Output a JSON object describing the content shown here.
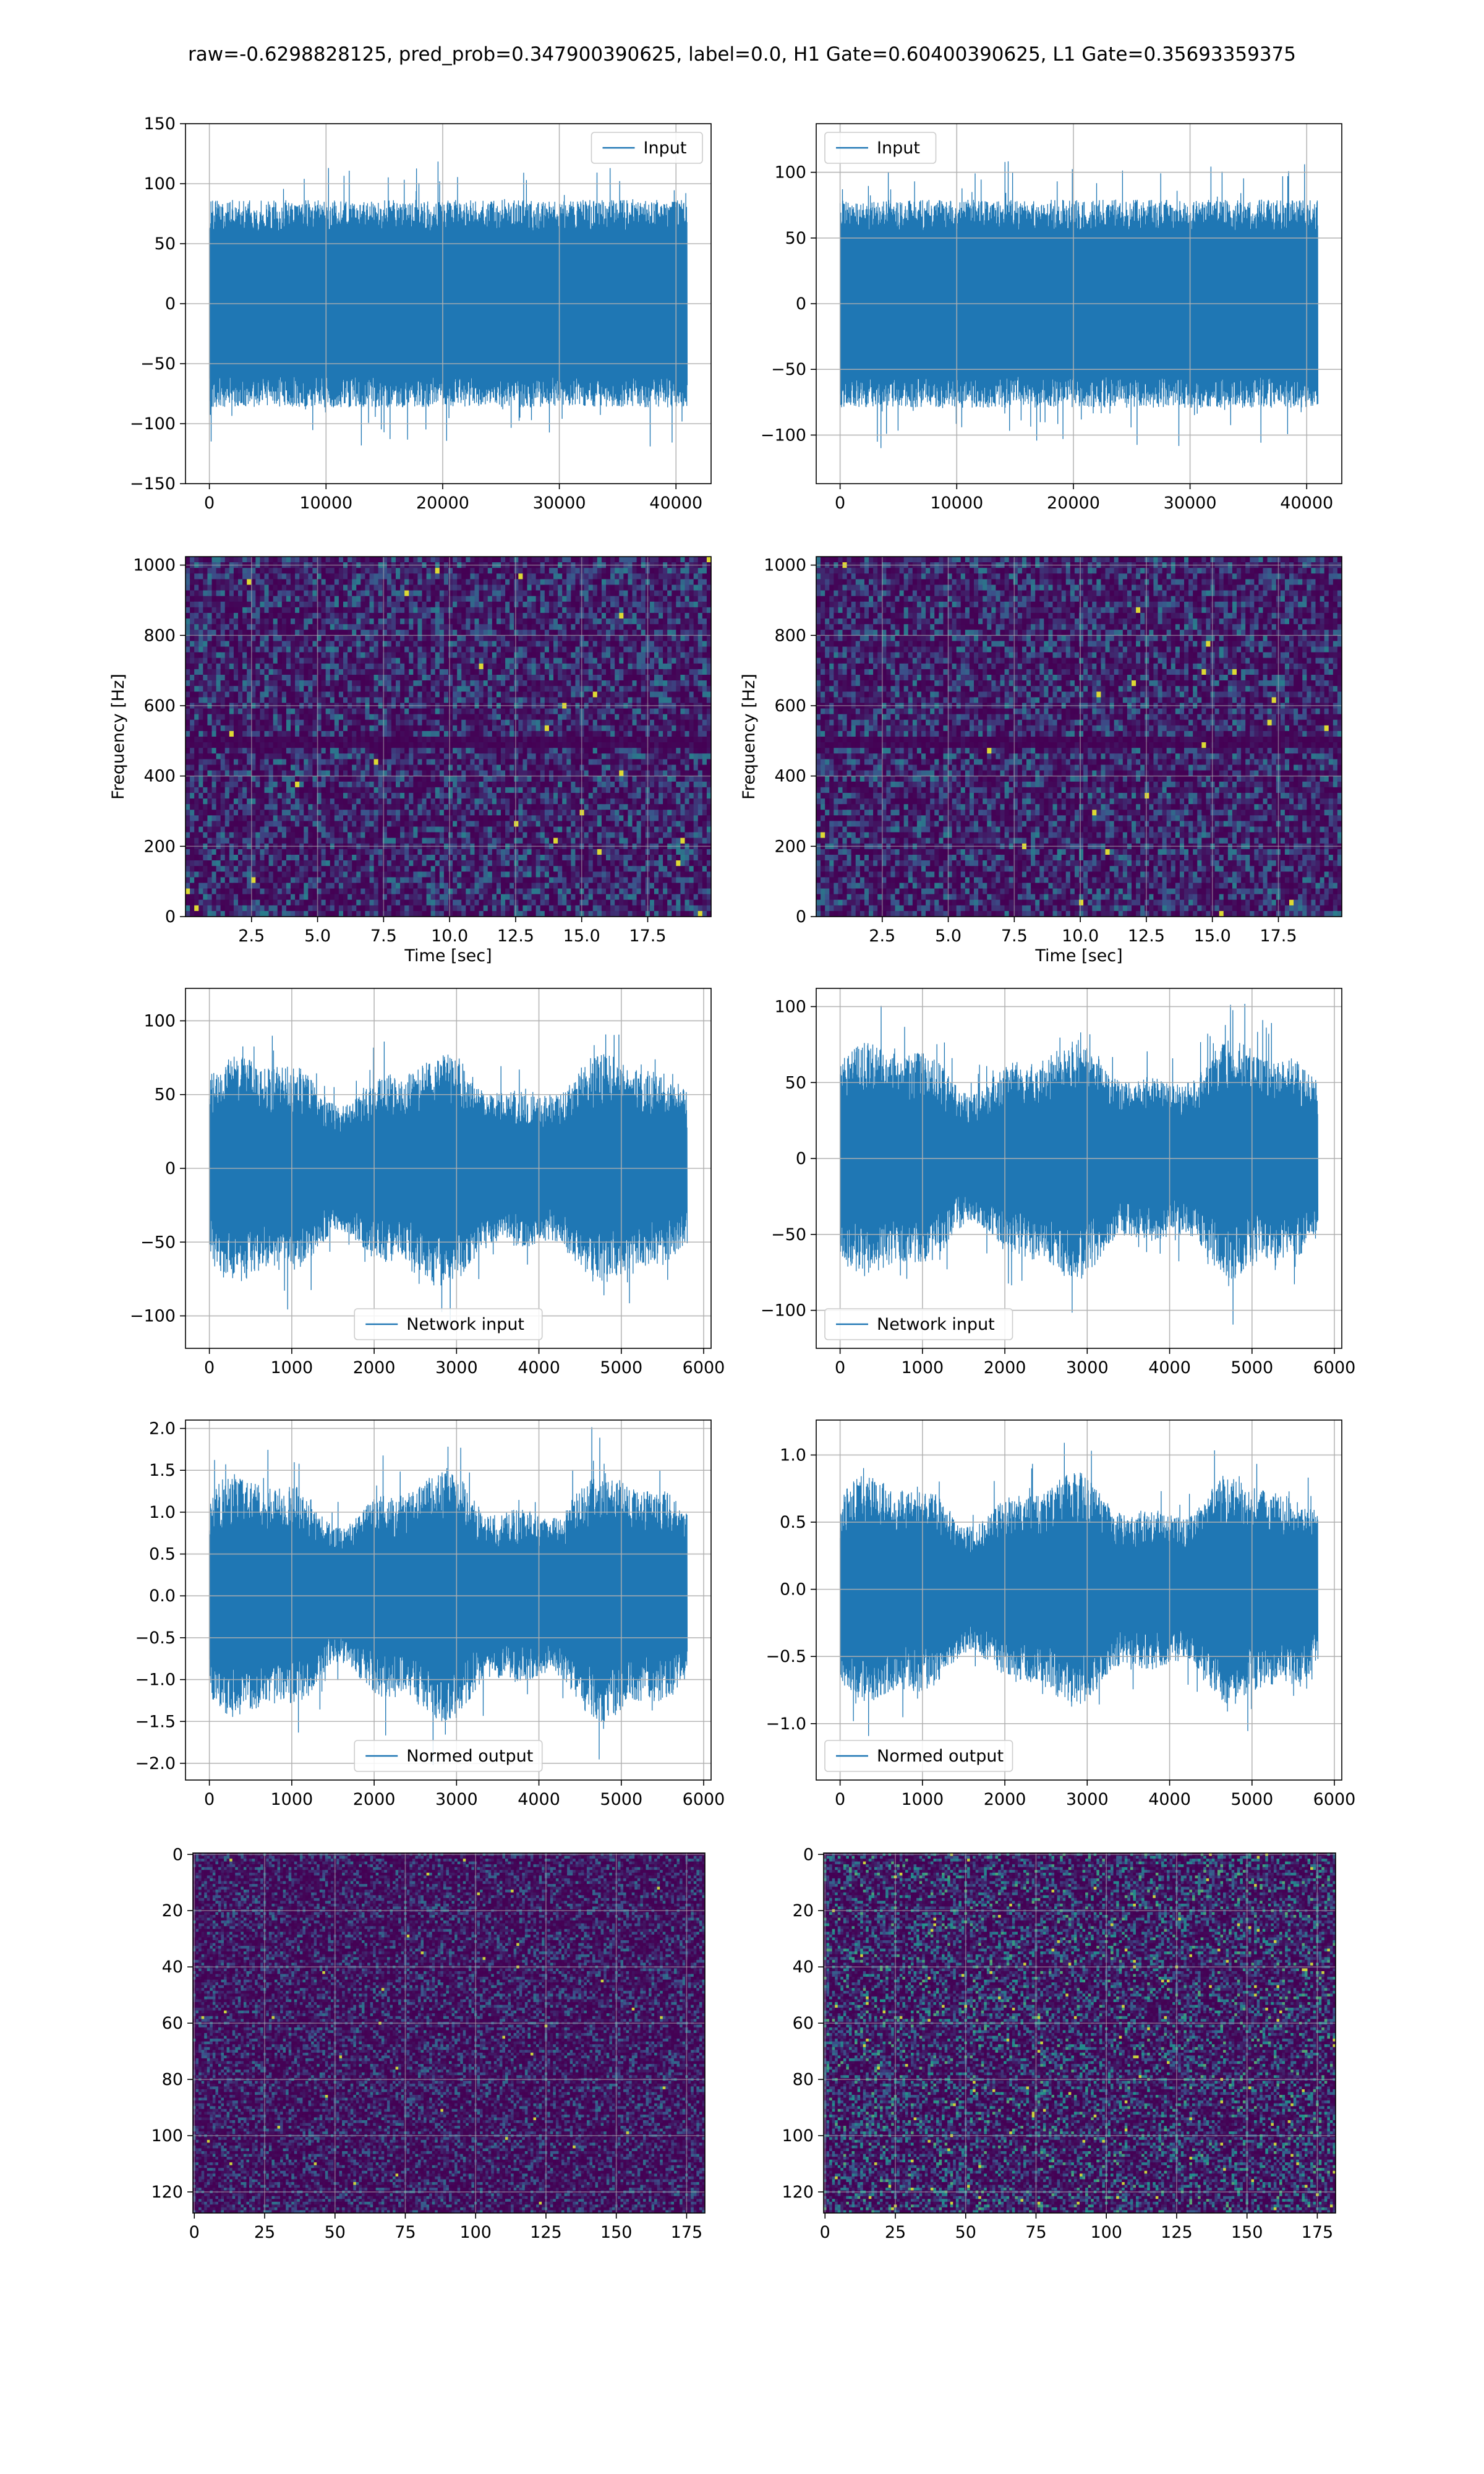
{
  "figure": {
    "title": "raw=-0.6298828125, pred_prob=0.347900390625, label=0.0, H1 Gate=0.60400390625, L1 Gate=0.35693359375"
  },
  "colors": {
    "line": "#1f77b4",
    "grid": "#b0b0b0",
    "heatmap_low": "#440154",
    "heatmap_mid": "#21918c",
    "heatmap_high": "#fde725"
  },
  "chart_data": [
    {
      "id": "h1-input",
      "type": "line",
      "signal": "noise",
      "x_range": [
        0,
        40960
      ],
      "xlim": [
        -2048,
        43008
      ],
      "ylim": [
        -150,
        150
      ],
      "amp_range": [
        60,
        120
      ],
      "envelope": "flat",
      "xticks": [
        0,
        10000,
        20000,
        30000,
        40000
      ],
      "xtick_labels": [
        "0",
        "10000",
        "20000",
        "30000",
        "40000"
      ],
      "yticks": [
        -150,
        -100,
        -50,
        0,
        50,
        100,
        150
      ],
      "ytick_labels": [
        "−150",
        "−100",
        "−50",
        "0",
        "50",
        "100",
        "150"
      ],
      "legend": "Input",
      "legend_loc": "upper right",
      "xlabel": "",
      "ylabel": "",
      "grid": true
    },
    {
      "id": "l1-input",
      "type": "line",
      "signal": "noise",
      "x_range": [
        0,
        40960
      ],
      "xlim": [
        -2048,
        43008
      ],
      "ylim": [
        -137,
        137
      ],
      "amp_range": [
        55,
        110
      ],
      "envelope": "flat",
      "xticks": [
        0,
        10000,
        20000,
        30000,
        40000
      ],
      "xtick_labels": [
        "0",
        "10000",
        "20000",
        "30000",
        "40000"
      ],
      "yticks": [
        -100,
        -50,
        0,
        50,
        100
      ],
      "ytick_labels": [
        "−100",
        "−50",
        "0",
        "50",
        "100"
      ],
      "legend": "Input",
      "legend_loc": "upper left",
      "xlabel": "",
      "ylabel": "",
      "grid": true
    },
    {
      "id": "h1-spectrogram",
      "type": "heatmap",
      "style": "spectrogram",
      "xlim": [
        0,
        19.9
      ],
      "ylim": [
        0,
        1024
      ],
      "xticks": [
        2.5,
        5.0,
        7.5,
        10.0,
        12.5,
        15.0,
        17.5
      ],
      "xtick_labels": [
        "2.5",
        "5.0",
        "7.5",
        "10.0",
        "12.5",
        "15.0",
        "17.5"
      ],
      "yticks": [
        0,
        200,
        400,
        600,
        800,
        1000
      ],
      "ytick_labels": [
        "0",
        "200",
        "400",
        "600",
        "800",
        "1000"
      ],
      "xlabel": "Time [sec]",
      "ylabel": "Frequency [Hz]",
      "grid": true,
      "cols": 120,
      "rows": 64,
      "dark_band_hz": 500
    },
    {
      "id": "l1-spectrogram",
      "type": "heatmap",
      "style": "spectrogram",
      "xlim": [
        0,
        19.9
      ],
      "ylim": [
        0,
        1024
      ],
      "xticks": [
        2.5,
        5.0,
        7.5,
        10.0,
        12.5,
        15.0,
        17.5
      ],
      "xtick_labels": [
        "2.5",
        "5.0",
        "7.5",
        "10.0",
        "12.5",
        "15.0",
        "17.5"
      ],
      "yticks": [
        0,
        200,
        400,
        600,
        800,
        1000
      ],
      "ytick_labels": [
        "0",
        "200",
        "400",
        "600",
        "800",
        "1000"
      ],
      "xlabel": "Time [sec]",
      "ylabel": "Frequency [Hz]",
      "grid": true,
      "cols": 120,
      "rows": 64,
      "dark_band_hz": 500
    },
    {
      "id": "h1-network-input",
      "type": "line",
      "signal": "noise",
      "x_range": [
        0,
        5800
      ],
      "xlim": [
        -290,
        6090
      ],
      "ylim": [
        -122,
        122
      ],
      "amp_range": [
        40,
        105
      ],
      "envelope": "wave",
      "xticks": [
        0,
        1000,
        2000,
        3000,
        4000,
        5000,
        6000
      ],
      "xtick_labels": [
        "0",
        "1000",
        "2000",
        "3000",
        "4000",
        "5000",
        "6000"
      ],
      "yticks": [
        -100,
        -50,
        0,
        50,
        100
      ],
      "ytick_labels": [
        "−100",
        "−50",
        "0",
        "50",
        "100"
      ],
      "legend": "Network input",
      "legend_loc": "lower center",
      "xlabel": "",
      "ylabel": "",
      "grid": true
    },
    {
      "id": "l1-network-input",
      "type": "line",
      "signal": "noise",
      "x_range": [
        0,
        5800
      ],
      "xlim": [
        -290,
        6090
      ],
      "ylim": [
        -125,
        112
      ],
      "amp_range": [
        40,
        105
      ],
      "envelope": "wave",
      "xticks": [
        0,
        1000,
        2000,
        3000,
        4000,
        5000,
        6000
      ],
      "xtick_labels": [
        "0",
        "1000",
        "2000",
        "3000",
        "4000",
        "5000",
        "6000"
      ],
      "yticks": [
        -100,
        -50,
        0,
        50,
        100
      ],
      "ytick_labels": [
        "−100",
        "−50",
        "0",
        "50",
        "100"
      ],
      "legend": "Network input",
      "legend_loc": "lower left",
      "xlabel": "",
      "ylabel": "",
      "grid": true
    },
    {
      "id": "h1-normed-output",
      "type": "line",
      "signal": "noise",
      "x_range": [
        0,
        5800
      ],
      "xlim": [
        -290,
        6090
      ],
      "ylim": [
        -2.2,
        2.1
      ],
      "amp_range": [
        0.8,
        2.0
      ],
      "envelope": "wave",
      "xticks": [
        0,
        1000,
        2000,
        3000,
        4000,
        5000,
        6000
      ],
      "xtick_labels": [
        "0",
        "1000",
        "2000",
        "3000",
        "4000",
        "5000",
        "6000"
      ],
      "yticks": [
        -2.0,
        -1.5,
        -1.0,
        -0.5,
        0.0,
        0.5,
        1.0,
        1.5,
        2.0
      ],
      "ytick_labels": [
        "−2.0",
        "−1.5",
        "−1.0",
        "−0.5",
        "0.0",
        "0.5",
        "1.0",
        "1.5",
        "2.0"
      ],
      "legend": "Normed output",
      "legend_loc": "lower center",
      "xlabel": "",
      "ylabel": "",
      "grid": true
    },
    {
      "id": "l1-normed-output",
      "type": "line",
      "signal": "noise",
      "x_range": [
        0,
        5800
      ],
      "xlim": [
        -290,
        6090
      ],
      "ylim": [
        -1.42,
        1.26
      ],
      "amp_range": [
        0.45,
        1.15
      ],
      "envelope": "wave",
      "xticks": [
        0,
        1000,
        2000,
        3000,
        4000,
        5000,
        6000
      ],
      "xtick_labels": [
        "0",
        "1000",
        "2000",
        "3000",
        "4000",
        "5000",
        "6000"
      ],
      "yticks": [
        -1.0,
        -0.5,
        0.0,
        0.5,
        1.0
      ],
      "ytick_labels": [
        "−1.0",
        "−0.5",
        "0.0",
        "0.5",
        "1.0"
      ],
      "legend": "Normed output",
      "legend_loc": "lower left",
      "xlabel": "",
      "ylabel": "",
      "grid": true
    },
    {
      "id": "h1-feature-map",
      "type": "heatmap",
      "style": "matrix",
      "xlim": [
        -0.5,
        181.5
      ],
      "ylim": [
        127.5,
        -0.5
      ],
      "inverted_y": true,
      "xticks": [
        0,
        25,
        50,
        75,
        100,
        125,
        150,
        175
      ],
      "xtick_labels": [
        "0",
        "25",
        "50",
        "75",
        "100",
        "125",
        "150",
        "175"
      ],
      "yticks": [
        0,
        20,
        40,
        60,
        80,
        100,
        120
      ],
      "ytick_labels": [
        "0",
        "20",
        "40",
        "60",
        "80",
        "100",
        "120"
      ],
      "xlabel": "",
      "ylabel": "",
      "grid": true,
      "cols": 182,
      "rows": 128,
      "brightness": 0.5
    },
    {
      "id": "l1-feature-map",
      "type": "heatmap",
      "style": "matrix",
      "xlim": [
        -0.5,
        181.5
      ],
      "ylim": [
        127.5,
        -0.5
      ],
      "inverted_y": true,
      "xticks": [
        0,
        25,
        50,
        75,
        100,
        125,
        150,
        175
      ],
      "xtick_labels": [
        "0",
        "25",
        "50",
        "75",
        "100",
        "125",
        "150",
        "175"
      ],
      "yticks": [
        0,
        20,
        40,
        60,
        80,
        100,
        120
      ],
      "ytick_labels": [
        "0",
        "20",
        "40",
        "60",
        "80",
        "100",
        "120"
      ],
      "xlabel": "",
      "ylabel": "",
      "grid": true,
      "cols": 182,
      "rows": 128,
      "brightness": 0.75
    }
  ]
}
